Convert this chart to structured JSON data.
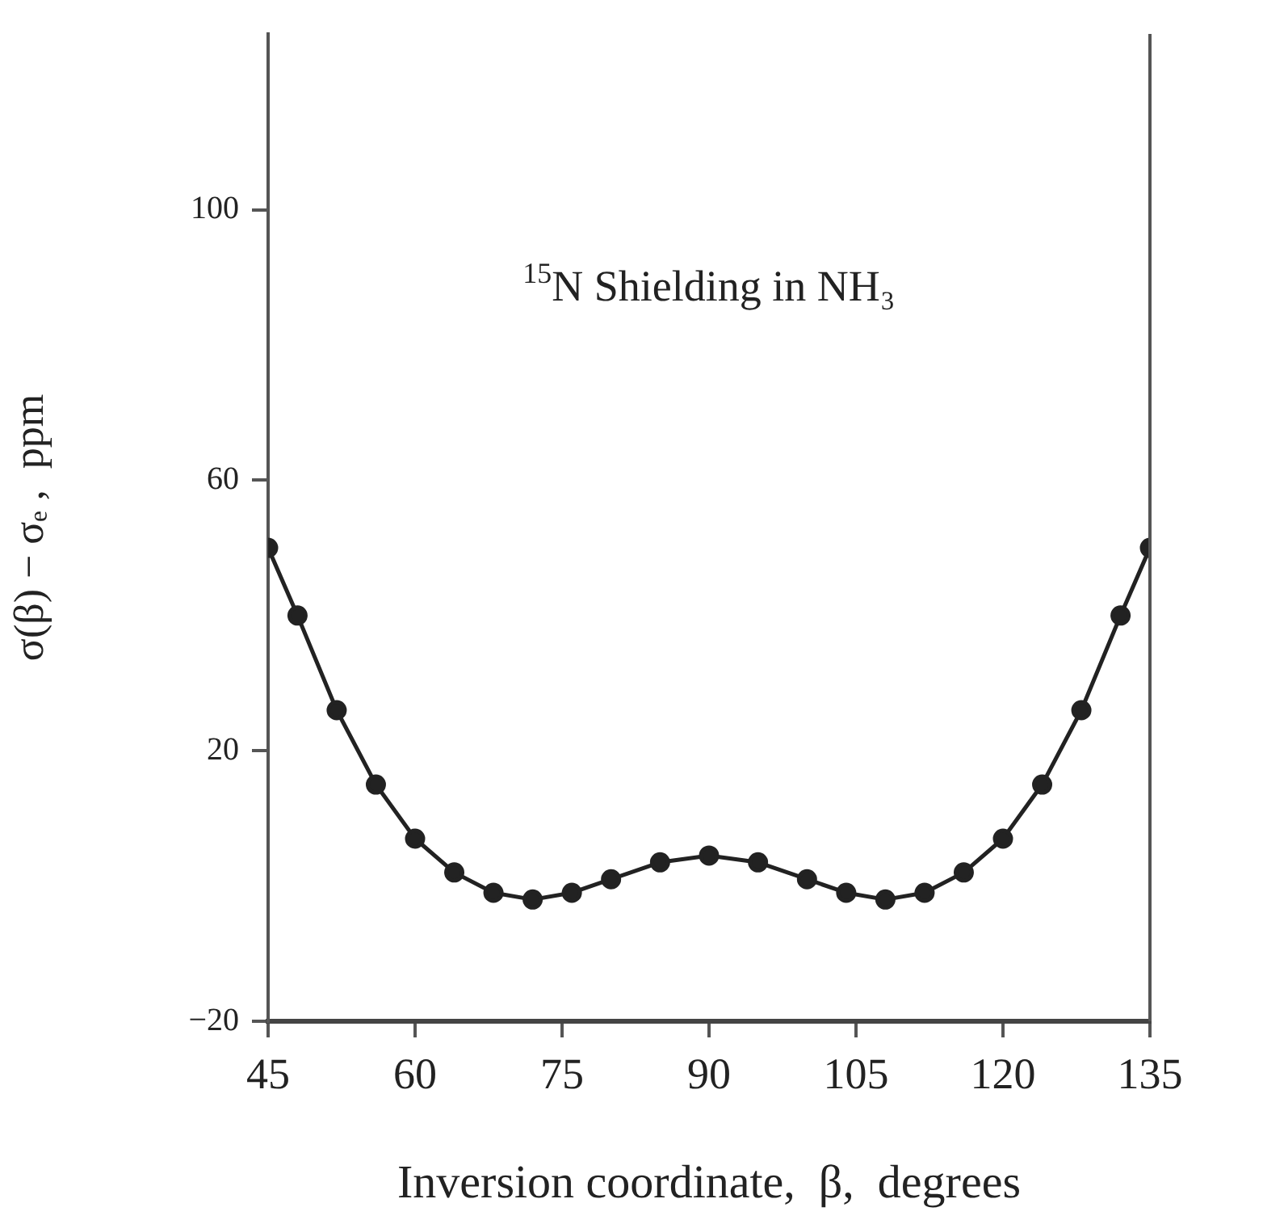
{
  "chart_data": {
    "type": "line",
    "xlabel": "Inversion coordinate,  β,  degrees",
    "ylabel": "σ(β) − σₑ ,  ppm",
    "annotations": [
      "$^{15}$N Shielding in NH₃"
    ],
    "x": [
      45,
      48,
      52,
      56,
      60,
      64,
      68,
      72,
      76,
      80,
      85,
      90,
      95,
      100,
      104,
      108,
      112,
      116,
      120,
      124,
      128,
      132,
      135
    ],
    "series": [
      {
        "color": "#222222",
        "values": [
          50,
          40,
          26,
          15,
          7,
          2,
          -1,
          -2,
          -1,
          1,
          3.5,
          4.5,
          3.5,
          1,
          -1,
          -2,
          -1,
          2,
          7,
          15,
          26,
          40,
          50
        ]
      }
    ],
    "xlim": [
      45,
      135
    ],
    "xticks": [
      45,
      60,
      75,
      90,
      105,
      120,
      135
    ],
    "ylim": [
      -20,
      126
    ],
    "yticks": [
      -20,
      20,
      60,
      100
    ],
    "grid": false,
    "legend": false,
    "marker": "circle",
    "line_style": "solid"
  }
}
